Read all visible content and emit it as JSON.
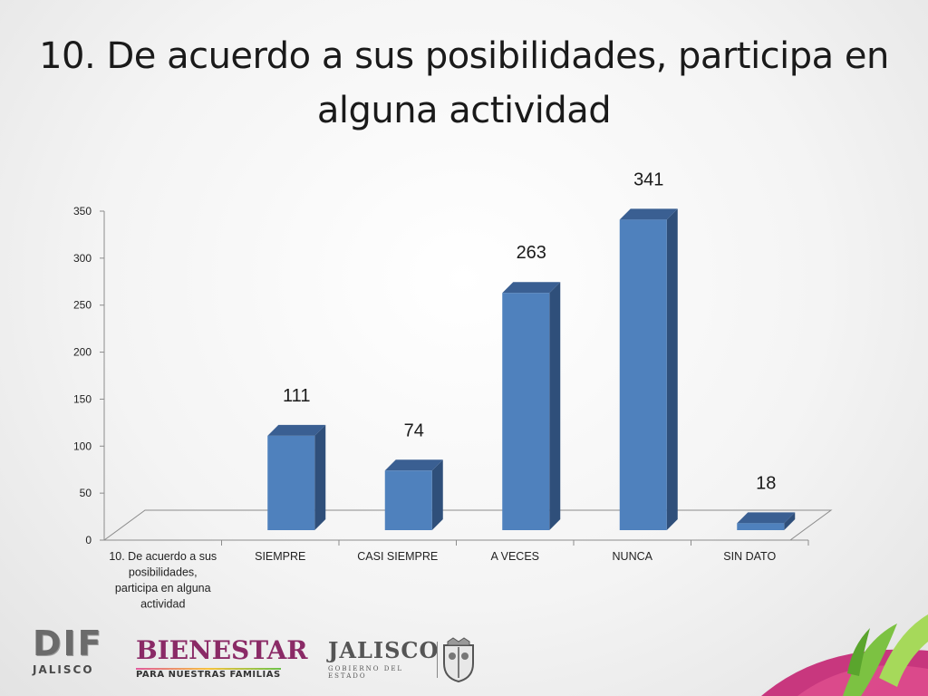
{
  "slide": {
    "title": "10. De acuerdo a sus posibilidades, participa en alguna actividad"
  },
  "footer": {
    "dif": {
      "mark": "DIF",
      "sub": "JALISCO"
    },
    "bienestar": {
      "mark": "BIENESTAR",
      "sub": "PARA NUESTRAS FAMILIAS"
    },
    "jalisco": {
      "mark": "JALISCO",
      "sub": "GOBIERNO DEL ESTADO"
    }
  },
  "chart_data": {
    "type": "bar",
    "title": "",
    "xlabel": "",
    "ylabel": "",
    "ylim": [
      0,
      350
    ],
    "yticks": [
      0,
      50,
      100,
      150,
      200,
      250,
      300,
      350
    ],
    "grid": false,
    "legend": "none",
    "style": "3d-column",
    "bar_color": "#4f81bd",
    "categories": [
      "10. De acuerdo a sus posibilidades, participa en alguna actividad",
      "SIEMPRE",
      "CASI SIEMPRE",
      "A VECES",
      "NUNCA",
      "SIN DATO"
    ],
    "values": [
      null,
      111,
      74,
      263,
      341,
      18
    ],
    "data_labels": [
      "",
      "111",
      "74",
      "263",
      "341",
      "18"
    ]
  }
}
